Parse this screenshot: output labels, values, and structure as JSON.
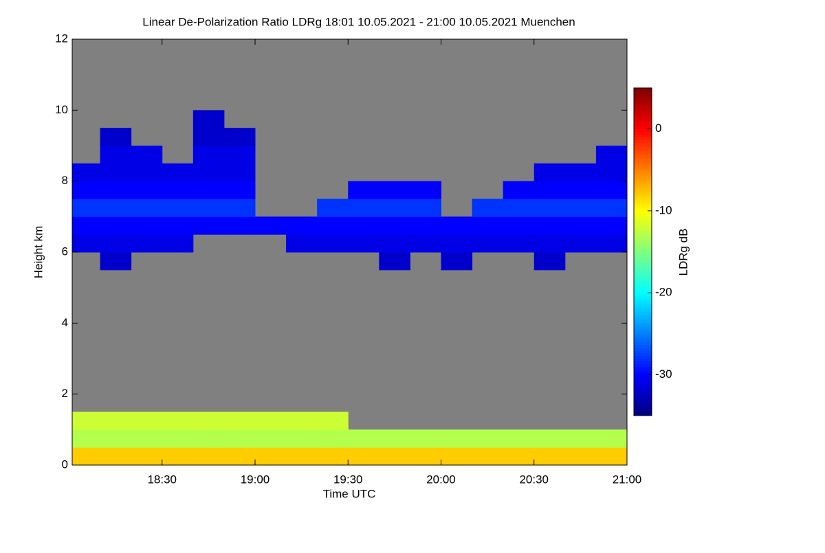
{
  "chart_data": {
    "type": "heatmap",
    "title": "Linear De-Polarization Ratio LDRg   18:01 10.05.2021 - 21:00 10.05.2021 Muenchen",
    "x_label": "Time UTC",
    "y_label": "Height km",
    "colorbar_label": "LDRg dB",
    "xlim": [
      18.0167,
      21.0
    ],
    "xticks": [
      {
        "value": 18.5,
        "label": "18:30"
      },
      {
        "value": 19.0,
        "label": "19:00"
      },
      {
        "value": 19.5,
        "label": "19:30"
      },
      {
        "value": 20.0,
        "label": "20:00"
      },
      {
        "value": 20.5,
        "label": "20:30"
      },
      {
        "value": 21.0,
        "label": "21:00"
      }
    ],
    "ylim": [
      0,
      12
    ],
    "yticks": [
      0,
      2,
      4,
      6,
      8,
      10,
      12
    ],
    "clim": [
      -35,
      5
    ],
    "cticks": [
      -30,
      -20,
      -10,
      0
    ],
    "colormap": "jet",
    "background_color": "#808080",
    "xbins": [
      18.0167,
      18.1667,
      18.3333,
      18.5,
      18.6667,
      18.8333,
      19.0,
      19.1667,
      19.3333,
      19.5,
      19.6667,
      19.8333,
      20.0,
      20.1667,
      20.3333,
      20.5,
      20.6667,
      20.8333,
      21.0
    ],
    "ybins": [
      0,
      0.5,
      1,
      1.5,
      2,
      2.5,
      3,
      3.5,
      4,
      4.5,
      5,
      5.5,
      6,
      6.5,
      7,
      7.5,
      8,
      8.5,
      9,
      9.5,
      10
    ],
    "z": [
      [
        -8,
        -8,
        -8,
        -8,
        -8,
        -8,
        -8,
        -8,
        -8,
        -8,
        -8,
        -8,
        -8,
        -8,
        -8,
        -8,
        -8,
        -8
      ],
      [
        -13,
        -13,
        -13,
        -13,
        -13,
        -13,
        -13,
        -13,
        -13,
        -13,
        -13,
        -13,
        -13,
        -13,
        -13,
        -13,
        -13,
        -13
      ],
      [
        -12,
        -12,
        -12,
        -12,
        -12,
        -12,
        -12,
        -12,
        -12,
        null,
        null,
        null,
        null,
        null,
        null,
        null,
        null,
        null
      ],
      [
        null,
        null,
        null,
        null,
        null,
        null,
        null,
        null,
        null,
        null,
        null,
        null,
        null,
        null,
        null,
        null,
        null,
        null
      ],
      [
        null,
        null,
        null,
        null,
        null,
        null,
        null,
        null,
        null,
        null,
        null,
        null,
        null,
        null,
        null,
        null,
        null,
        null
      ],
      [
        null,
        null,
        null,
        null,
        null,
        null,
        null,
        null,
        null,
        null,
        null,
        null,
        null,
        null,
        null,
        null,
        null,
        null
      ],
      [
        null,
        null,
        null,
        null,
        null,
        null,
        null,
        null,
        null,
        null,
        null,
        null,
        null,
        null,
        null,
        null,
        null,
        null
      ],
      [
        null,
        null,
        null,
        null,
        null,
        null,
        null,
        null,
        null,
        null,
        null,
        null,
        null,
        null,
        null,
        null,
        null,
        null
      ],
      [
        null,
        null,
        null,
        null,
        null,
        null,
        null,
        null,
        null,
        null,
        null,
        null,
        null,
        null,
        null,
        null,
        null,
        null
      ],
      [
        null,
        null,
        null,
        null,
        null,
        null,
        null,
        null,
        null,
        null,
        null,
        null,
        null,
        null,
        null,
        null,
        null,
        null
      ],
      [
        null,
        null,
        null,
        null,
        null,
        null,
        null,
        null,
        null,
        null,
        null,
        null,
        null,
        null,
        null,
        null,
        null,
        null
      ],
      [
        null,
        -32,
        null,
        null,
        null,
        null,
        null,
        null,
        null,
        null,
        -32,
        null,
        -32,
        null,
        null,
        -32,
        null,
        null
      ],
      [
        -31,
        -31,
        -31,
        -31,
        null,
        null,
        null,
        -31,
        -31,
        -31,
        -31,
        -31,
        -31,
        -31,
        -31,
        -31,
        -31,
        -31
      ],
      [
        -30,
        -30,
        -30,
        -30,
        -30,
        -30,
        -30,
        -30,
        -30,
        -30,
        -30,
        -30,
        -30,
        -30,
        -30,
        -30,
        -30,
        -30
      ],
      [
        -28,
        -28,
        -28,
        -28,
        -28,
        -28,
        null,
        null,
        -28,
        -28,
        -28,
        -28,
        null,
        -28,
        -28,
        -28,
        -28,
        -28
      ],
      [
        -30,
        -30,
        -30,
        -30,
        -30,
        -30,
        null,
        null,
        null,
        -30,
        -30,
        -30,
        null,
        null,
        -30,
        -30,
        -30,
        -30
      ],
      [
        -31,
        -31,
        -31,
        -31,
        -31,
        -31,
        null,
        null,
        null,
        null,
        null,
        null,
        null,
        null,
        null,
        -31,
        -31,
        -31
      ],
      [
        null,
        -31,
        -31,
        null,
        -31,
        -31,
        null,
        null,
        null,
        null,
        null,
        null,
        null,
        null,
        null,
        null,
        null,
        -31
      ],
      [
        null,
        -32,
        null,
        null,
        -32,
        -32,
        null,
        null,
        null,
        null,
        null,
        null,
        null,
        null,
        null,
        null,
        null,
        null
      ],
      [
        null,
        null,
        null,
        null,
        -32,
        null,
        null,
        null,
        null,
        null,
        null,
        null,
        null,
        null,
        null,
        null,
        null,
        null
      ]
    ]
  }
}
